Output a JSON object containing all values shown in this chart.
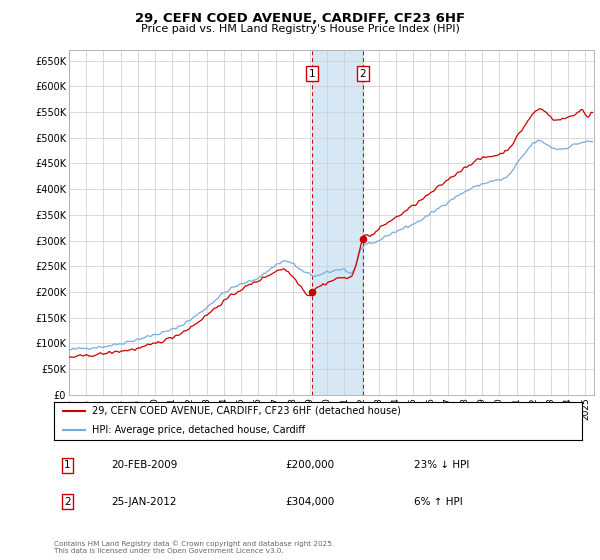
{
  "title": "29, CEFN COED AVENUE, CARDIFF, CF23 6HF",
  "subtitle": "Price paid vs. HM Land Registry's House Price Index (HPI)",
  "footer": "Contains HM Land Registry data © Crown copyright and database right 2025.\nThis data is licensed under the Open Government Licence v3.0.",
  "legend_line1": "29, CEFN COED AVENUE, CARDIFF, CF23 6HF (detached house)",
  "legend_line2": "HPI: Average price, detached house, Cardiff",
  "hpi_color": "#7aaddc",
  "price_color": "#cc0000",
  "vline_color": "#cc0000",
  "vshade_color": "#d6e8f5",
  "annotation_box_color": "#cc0000",
  "ylim": [
    0,
    670000
  ],
  "yticks": [
    0,
    50000,
    100000,
    150000,
    200000,
    250000,
    300000,
    350000,
    400000,
    450000,
    500000,
    550000,
    600000,
    650000
  ],
  "ytick_labels": [
    "£0",
    "£50K",
    "£100K",
    "£150K",
    "£200K",
    "£250K",
    "£300K",
    "£350K",
    "£400K",
    "£450K",
    "£500K",
    "£550K",
    "£600K",
    "£650K"
  ],
  "event1": {
    "label": "1",
    "date_str": "20-FEB-2009",
    "price": 200000,
    "hpi_rel": "23% ↓ HPI",
    "x_year": 2009.13
  },
  "event2": {
    "label": "2",
    "date_str": "25-JAN-2012",
    "price": 304000,
    "hpi_rel": "6% ↑ HPI",
    "x_year": 2012.07
  },
  "xmin": 1995.0,
  "xmax": 2025.5,
  "xtick_years": [
    1995,
    1996,
    1997,
    1998,
    1999,
    2000,
    2001,
    2002,
    2003,
    2004,
    2005,
    2006,
    2007,
    2008,
    2009,
    2010,
    2011,
    2012,
    2013,
    2014,
    2015,
    2016,
    2017,
    2018,
    2019,
    2020,
    2021,
    2022,
    2023,
    2024,
    2025
  ]
}
